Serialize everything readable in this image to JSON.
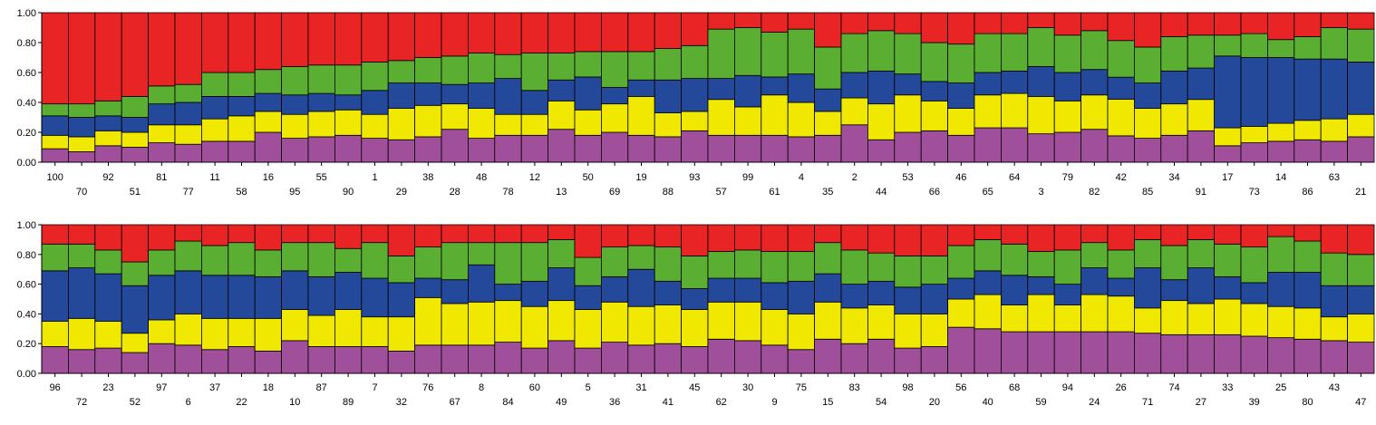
{
  "chart_data": [
    {
      "type": "bar",
      "stacked": true,
      "normalized": true,
      "ylim": [
        0,
        1
      ],
      "yticks": [
        "0.00",
        "0.20",
        "0.40",
        "0.60",
        "0.80",
        "1.00"
      ],
      "colors": {
        "purple": "#a0509a",
        "yellow": "#f0e800",
        "blue": "#24489a",
        "green": "#5aae32",
        "red": "#e82424"
      },
      "categories": [
        "100",
        "70",
        "92",
        "51",
        "81",
        "77",
        "11",
        "58",
        "16",
        "95",
        "55",
        "90",
        "1",
        "29",
        "38",
        "28",
        "48",
        "78",
        "12",
        "13",
        "50",
        "69",
        "19",
        "88",
        "93",
        "57",
        "99",
        "61",
        "4",
        "35",
        "2",
        "44",
        "53",
        "66",
        "46",
        "65",
        "64",
        "3",
        "79",
        "82",
        "42",
        "85",
        "34",
        "91",
        "17",
        "73",
        "14",
        "86",
        "63",
        "21"
      ],
      "series": [
        {
          "values": [
            0.09,
            0.07,
            0.11,
            0.1,
            0.13,
            0.12,
            0.14,
            0.14,
            0.2,
            0.16,
            0.17,
            0.18,
            0.16,
            0.15,
            0.17,
            0.22,
            0.16,
            0.18,
            0.18,
            0.22,
            0.18,
            0.2,
            0.18,
            0.17,
            0.21,
            0.18,
            0.18,
            0.18,
            0.17,
            0.18,
            0.25,
            0.15,
            0.2,
            0.21,
            0.18,
            0.23,
            0.23,
            0.19,
            0.2,
            0.22,
            0.18,
            0.16,
            0.18,
            0.21,
            0.11,
            0.13,
            0.14,
            0.15,
            0.14,
            0.17
          ]
        },
        {
          "values": [
            0.09,
            0.1,
            0.1,
            0.1,
            0.12,
            0.13,
            0.15,
            0.17,
            0.14,
            0.16,
            0.17,
            0.17,
            0.16,
            0.21,
            0.21,
            0.17,
            0.2,
            0.14,
            0.14,
            0.19,
            0.17,
            0.19,
            0.26,
            0.16,
            0.13,
            0.24,
            0.19,
            0.27,
            0.23,
            0.16,
            0.18,
            0.24,
            0.25,
            0.2,
            0.18,
            0.22,
            0.23,
            0.25,
            0.21,
            0.23,
            0.25,
            0.2,
            0.21,
            0.21,
            0.12,
            0.11,
            0.12,
            0.13,
            0.15,
            0.15
          ]
        },
        {
          "values": [
            0.13,
            0.13,
            0.1,
            0.1,
            0.14,
            0.15,
            0.15,
            0.13,
            0.12,
            0.13,
            0.12,
            0.1,
            0.16,
            0.17,
            0.15,
            0.13,
            0.17,
            0.24,
            0.16,
            0.14,
            0.22,
            0.11,
            0.11,
            0.22,
            0.22,
            0.14,
            0.21,
            0.12,
            0.19,
            0.15,
            0.17,
            0.22,
            0.14,
            0.13,
            0.17,
            0.15,
            0.15,
            0.2,
            0.19,
            0.17,
            0.15,
            0.17,
            0.22,
            0.21,
            0.48,
            0.46,
            0.44,
            0.41,
            0.4,
            0.35
          ]
        },
        {
          "values": [
            0.08,
            0.09,
            0.1,
            0.14,
            0.12,
            0.12,
            0.16,
            0.16,
            0.16,
            0.19,
            0.19,
            0.2,
            0.19,
            0.15,
            0.17,
            0.19,
            0.2,
            0.16,
            0.25,
            0.18,
            0.17,
            0.24,
            0.19,
            0.21,
            0.22,
            0.33,
            0.32,
            0.3,
            0.3,
            0.28,
            0.26,
            0.27,
            0.27,
            0.26,
            0.26,
            0.26,
            0.25,
            0.26,
            0.25,
            0.26,
            0.25,
            0.24,
            0.23,
            0.22,
            0.14,
            0.16,
            0.12,
            0.15,
            0.21,
            0.22
          ]
        },
        {
          "values": [
            0.61,
            0.61,
            0.59,
            0.56,
            0.49,
            0.48,
            0.4,
            0.4,
            0.38,
            0.36,
            0.35,
            0.35,
            0.33,
            0.32,
            0.3,
            0.29,
            0.27,
            0.28,
            0.27,
            0.27,
            0.26,
            0.26,
            0.26,
            0.24,
            0.22,
            0.11,
            0.1,
            0.13,
            0.11,
            0.23,
            0.14,
            0.12,
            0.14,
            0.2,
            0.21,
            0.14,
            0.14,
            0.1,
            0.15,
            0.12,
            0.19,
            0.23,
            0.16,
            0.15,
            0.15,
            0.14,
            0.18,
            0.16,
            0.1,
            0.11
          ]
        }
      ]
    },
    {
      "type": "bar",
      "stacked": true,
      "normalized": true,
      "ylim": [
        0,
        1
      ],
      "yticks": [
        "0.00",
        "0.20",
        "0.40",
        "0.60",
        "0.80",
        "1.00"
      ],
      "colors": {
        "purple": "#a0509a",
        "yellow": "#f0e800",
        "blue": "#24489a",
        "green": "#5aae32",
        "red": "#e82424"
      },
      "categories": [
        "96",
        "72",
        "23",
        "52",
        "97",
        "6",
        "37",
        "22",
        "18",
        "10",
        "87",
        "89",
        "7",
        "32",
        "76",
        "67",
        "8",
        "84",
        "60",
        "49",
        "5",
        "36",
        "31",
        "41",
        "45",
        "62",
        "30",
        "9",
        "75",
        "15",
        "83",
        "54",
        "98",
        "20",
        "56",
        "40",
        "68",
        "59",
        "94",
        "24",
        "26",
        "71",
        "74",
        "27",
        "33",
        "39",
        "25",
        "80",
        "43",
        "47"
      ],
      "series": [
        {
          "values": [
            0.18,
            0.16,
            0.17,
            0.14,
            0.2,
            0.19,
            0.16,
            0.18,
            0.15,
            0.22,
            0.18,
            0.18,
            0.18,
            0.15,
            0.19,
            0.19,
            0.19,
            0.21,
            0.17,
            0.22,
            0.17,
            0.21,
            0.19,
            0.2,
            0.18,
            0.23,
            0.22,
            0.19,
            0.16,
            0.23,
            0.2,
            0.23,
            0.17,
            0.18,
            0.31,
            0.3,
            0.28,
            0.28,
            0.28,
            0.28,
            0.28,
            0.27,
            0.26,
            0.26,
            0.26,
            0.25,
            0.24,
            0.23,
            0.22,
            0.21
          ]
        },
        {
          "values": [
            0.17,
            0.21,
            0.18,
            0.13,
            0.16,
            0.21,
            0.21,
            0.19,
            0.22,
            0.21,
            0.21,
            0.25,
            0.2,
            0.23,
            0.32,
            0.28,
            0.29,
            0.28,
            0.28,
            0.27,
            0.26,
            0.27,
            0.26,
            0.26,
            0.25,
            0.25,
            0.26,
            0.24,
            0.24,
            0.25,
            0.24,
            0.23,
            0.23,
            0.22,
            0.19,
            0.23,
            0.18,
            0.25,
            0.18,
            0.25,
            0.24,
            0.17,
            0.23,
            0.21,
            0.24,
            0.22,
            0.21,
            0.21,
            0.16,
            0.19
          ]
        },
        {
          "values": [
            0.34,
            0.34,
            0.32,
            0.32,
            0.3,
            0.29,
            0.29,
            0.29,
            0.28,
            0.26,
            0.26,
            0.25,
            0.26,
            0.23,
            0.13,
            0.16,
            0.25,
            0.11,
            0.17,
            0.22,
            0.16,
            0.17,
            0.25,
            0.16,
            0.14,
            0.16,
            0.16,
            0.18,
            0.22,
            0.19,
            0.16,
            0.16,
            0.18,
            0.2,
            0.14,
            0.16,
            0.2,
            0.12,
            0.14,
            0.18,
            0.12,
            0.27,
            0.14,
            0.24,
            0.15,
            0.14,
            0.23,
            0.24,
            0.21,
            0.19
          ]
        },
        {
          "values": [
            0.18,
            0.16,
            0.16,
            0.16,
            0.17,
            0.2,
            0.2,
            0.22,
            0.18,
            0.19,
            0.23,
            0.16,
            0.24,
            0.18,
            0.21,
            0.25,
            0.15,
            0.28,
            0.26,
            0.19,
            0.19,
            0.2,
            0.16,
            0.23,
            0.22,
            0.18,
            0.19,
            0.21,
            0.2,
            0.21,
            0.23,
            0.19,
            0.21,
            0.19,
            0.22,
            0.21,
            0.21,
            0.17,
            0.23,
            0.17,
            0.19,
            0.19,
            0.23,
            0.19,
            0.22,
            0.24,
            0.24,
            0.21,
            0.22,
            0.21
          ]
        },
        {
          "values": [
            0.13,
            0.13,
            0.17,
            0.25,
            0.17,
            0.11,
            0.14,
            0.12,
            0.17,
            0.12,
            0.12,
            0.16,
            0.12,
            0.21,
            0.15,
            0.12,
            0.12,
            0.12,
            0.12,
            0.1,
            0.22,
            0.15,
            0.14,
            0.15,
            0.21,
            0.18,
            0.17,
            0.18,
            0.18,
            0.12,
            0.17,
            0.19,
            0.21,
            0.21,
            0.14,
            0.1,
            0.13,
            0.18,
            0.17,
            0.12,
            0.17,
            0.1,
            0.14,
            0.1,
            0.13,
            0.15,
            0.08,
            0.11,
            0.19,
            0.2
          ]
        }
      ]
    }
  ]
}
